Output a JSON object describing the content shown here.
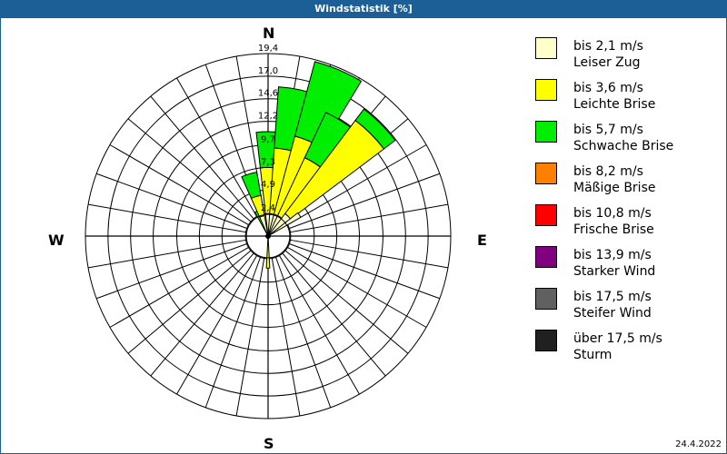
{
  "window": {
    "title": "Windstatistik [%]",
    "date": "24.4.2022"
  },
  "compass": {
    "n": "N",
    "e": "E",
    "s": "S",
    "w": "W"
  },
  "legend": [
    {
      "range": "bis 2,1 m/s",
      "name": "Leiser Zug",
      "color": "#ffffcc"
    },
    {
      "range": "bis 3,6 m/s",
      "name": "Leichte Brise",
      "color": "#ffff00"
    },
    {
      "range": "bis 5,7 m/s",
      "name": "Schwache Brise",
      "color": "#00ee00"
    },
    {
      "range": "bis 8,2 m/s",
      "name": "Mäßige Brise",
      "color": "#ff8000"
    },
    {
      "range": "bis 10,8 m/s",
      "name": "Frische Brise",
      "color": "#ff0000"
    },
    {
      "range": "bis 13,9 m/s",
      "name": "Starker Wind",
      "color": "#800080"
    },
    {
      "range": "bis 17,5 m/s",
      "name": "Steifer Wind",
      "color": "#606060"
    },
    {
      "range": "über 17,5 m/s",
      "name": "Sturm",
      "color": "#202020"
    }
  ],
  "chart_data": {
    "type": "wind-rose",
    "title": "Windstatistik [%]",
    "radial_ticks": [
      "2,4",
      "4,9",
      "7,3",
      "9,7",
      "12,2",
      "14,6",
      "17,0",
      "19,4"
    ],
    "radial_values": [
      2.4,
      4.9,
      7.3,
      9.7,
      12.2,
      14.6,
      17.0,
      19.4
    ],
    "rmax": 19.4,
    "sector_count": 36,
    "categories": [
      "bis 2,1 m/s",
      "bis 3,6 m/s",
      "bis 5,7 m/s",
      "bis 8,2 m/s",
      "bis 10,8 m/s",
      "bis 13,9 m/s",
      "bis 17,5 m/s",
      "über 17,5 m/s"
    ],
    "petals_cumulative_percent": [
      {
        "direction_deg": 180,
        "width_deg": 6,
        "stack": [
          0.4,
          3.4
        ]
      },
      {
        "direction_deg": 335,
        "width_deg": 8,
        "stack": [
          1.0,
          1.0,
          2.9
        ]
      },
      {
        "direction_deg": 343,
        "width_deg": 14,
        "stack": [
          2.2,
          4.4,
          6.9
        ]
      },
      {
        "direction_deg": 1,
        "width_deg": 15,
        "stack": [
          2.4,
          7.3,
          11.1
        ]
      },
      {
        "direction_deg": 12,
        "width_deg": 16,
        "stack": [
          2.4,
          9.4,
          15.9
        ]
      },
      {
        "direction_deg": 23,
        "width_deg": 16,
        "stack": [
          2.4,
          11.0,
          19.2
        ]
      },
      {
        "direction_deg": 33,
        "width_deg": 16,
        "stack": [
          2.4,
          9.2,
          14.5
        ]
      },
      {
        "direction_deg": 45,
        "width_deg": 16,
        "stack": [
          3.0,
          15.4,
          16.9
        ]
      },
      {
        "direction_deg": 56,
        "width_deg": 8,
        "stack": [
          4.0
        ]
      }
    ]
  }
}
